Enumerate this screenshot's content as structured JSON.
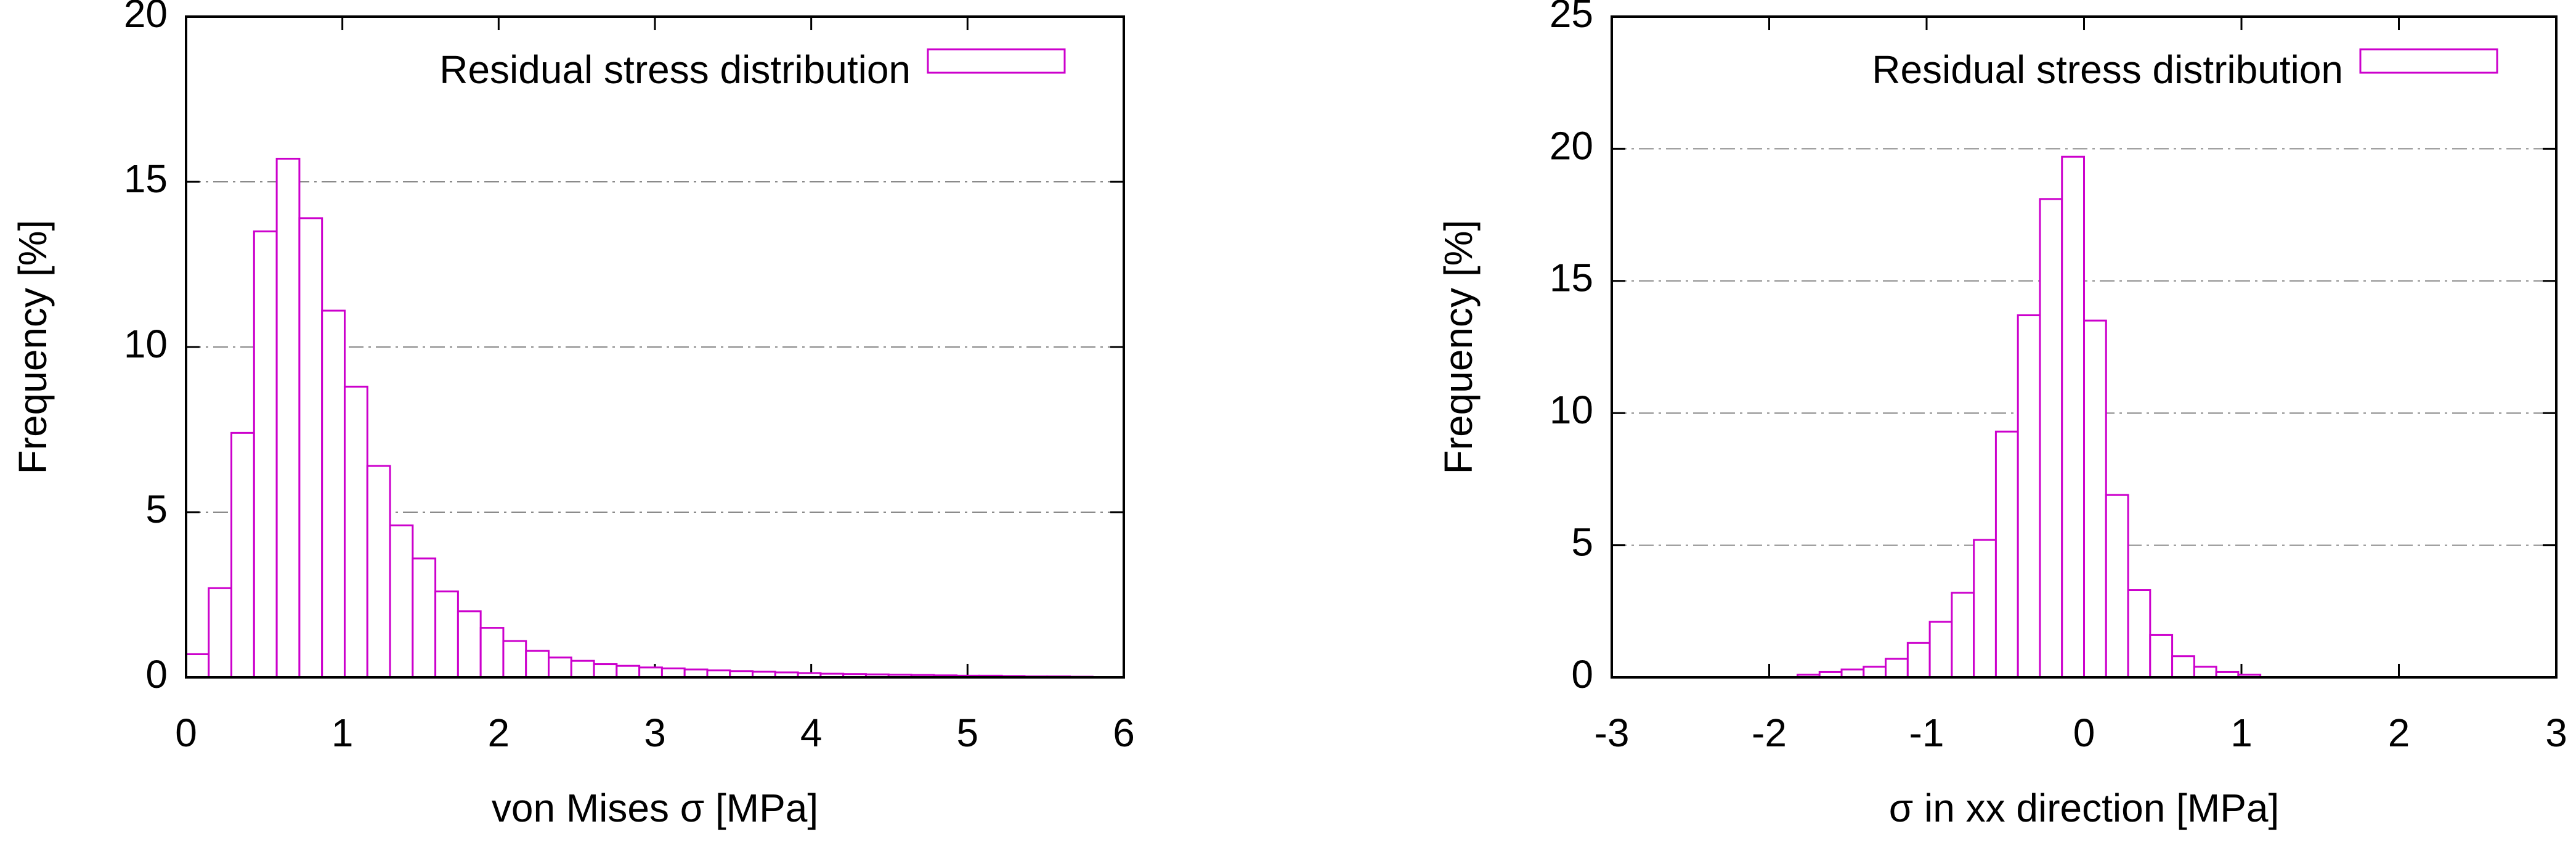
{
  "chart_data": [
    {
      "type": "histogram",
      "xlabel": "von Mises σ [MPa]",
      "ylabel": "Frequency [%]",
      "bins": [
        0,
        0.145,
        0.29,
        0.435,
        0.58,
        0.725,
        0.87,
        1.015,
        1.16,
        1.305,
        1.45,
        1.595,
        1.74,
        1.885,
        2.03,
        2.175,
        2.32,
        2.465,
        2.61,
        2.755,
        2.9,
        3.045,
        3.19,
        3.335,
        3.48,
        3.625,
        3.77,
        3.915,
        4.06,
        4.205,
        4.35,
        4.495,
        4.64,
        4.785,
        4.93,
        5.075,
        5.22,
        5.365,
        5.51,
        5.655,
        5.8
      ],
      "series": [
        {
          "name": "Residual stress distribution",
          "color": "#cc00cc",
          "values": [
            0.7,
            2.7,
            7.4,
            13.5,
            15.7,
            13.9,
            11.1,
            8.8,
            6.4,
            4.6,
            3.6,
            2.6,
            2.0,
            1.5,
            1.1,
            0.8,
            0.6,
            0.5,
            0.4,
            0.35,
            0.3,
            0.27,
            0.24,
            0.21,
            0.19,
            0.17,
            0.15,
            0.13,
            0.11,
            0.1,
            0.09,
            0.08,
            0.07,
            0.06,
            0.05,
            0.05,
            0.04,
            0.03,
            0.03,
            0.02
          ]
        }
      ],
      "xlim": [
        0,
        6
      ],
      "xticks": [
        0,
        1,
        2,
        3,
        4,
        5,
        6
      ],
      "ylim": [
        0,
        20
      ],
      "yticks": [
        0,
        5,
        10,
        15,
        20
      ],
      "grid": true,
      "legend": "top-right"
    },
    {
      "type": "histogram",
      "xlabel": "σ in xx direction [MPa]",
      "ylabel": "Frequency [%]",
      "bins": [
        -1.82,
        -1.68,
        -1.54,
        -1.4,
        -1.26,
        -1.12,
        -0.98,
        -0.84,
        -0.7,
        -0.56,
        -0.42,
        -0.28,
        -0.14,
        0,
        0.14,
        0.28,
        0.42,
        0.56,
        0.7,
        0.84,
        0.98,
        1.12
      ],
      "series": [
        {
          "name": "Residual stress distribution",
          "color": "#cc00cc",
          "values": [
            0.1,
            0.2,
            0.3,
            0.4,
            0.7,
            1.3,
            2.1,
            3.2,
            5.2,
            9.3,
            13.7,
            18.1,
            19.7,
            13.5,
            6.9,
            3.3,
            1.6,
            0.8,
            0.4,
            0.2,
            0.1
          ]
        }
      ],
      "xlim": [
        -3,
        3
      ],
      "xticks": [
        -3,
        -2,
        -1,
        0,
        1,
        2,
        3
      ],
      "ylim": [
        0,
        25
      ],
      "yticks": [
        0,
        5,
        10,
        15,
        20,
        25
      ],
      "grid": true,
      "legend": "top-right"
    }
  ]
}
